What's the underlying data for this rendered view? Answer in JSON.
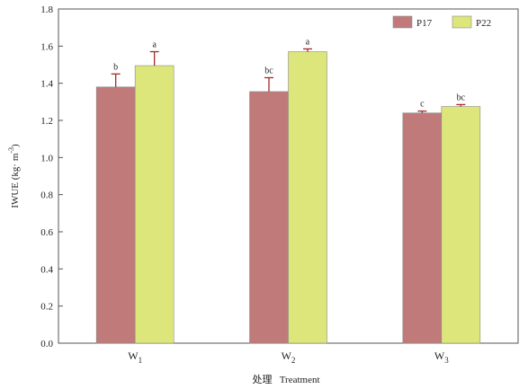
{
  "chart_data": {
    "type": "bar",
    "categories": [
      "W1",
      "W2",
      "W3"
    ],
    "category_labels": [
      {
        "base": "W",
        "sub": "1"
      },
      {
        "base": "W",
        "sub": "2"
      },
      {
        "base": "W",
        "sub": "3"
      }
    ],
    "series": [
      {
        "name": "P17",
        "color": "#c07a7a",
        "values": [
          1.38,
          1.355,
          1.24
        ],
        "errors": [
          0.07,
          0.075,
          0.01
        ],
        "letters": [
          "b",
          "bc",
          "c"
        ]
      },
      {
        "name": "P22",
        "color": "#dce67a",
        "values": [
          1.495,
          1.57,
          1.275
        ],
        "errors": [
          0.075,
          0.015,
          0.01
        ],
        "letters": [
          "a",
          "a",
          "bc"
        ]
      }
    ],
    "ylabel": "IWUE (kg· m⁻³)",
    "ylabel_parts": {
      "main": "IWUE (kg· m",
      "sup": "-3",
      "close": ")"
    },
    "xlabel": "处理   Treatment",
    "ylim": [
      0,
      1.8
    ],
    "yticks": [
      "0.0",
      "0.2",
      "0.4",
      "0.6",
      "0.8",
      "1.0",
      "1.2",
      "1.4",
      "1.6",
      "1.8"
    ],
    "grid": false,
    "legend_position": "top-right",
    "error_color": "#a52a2a",
    "axis_color": "#555555"
  }
}
